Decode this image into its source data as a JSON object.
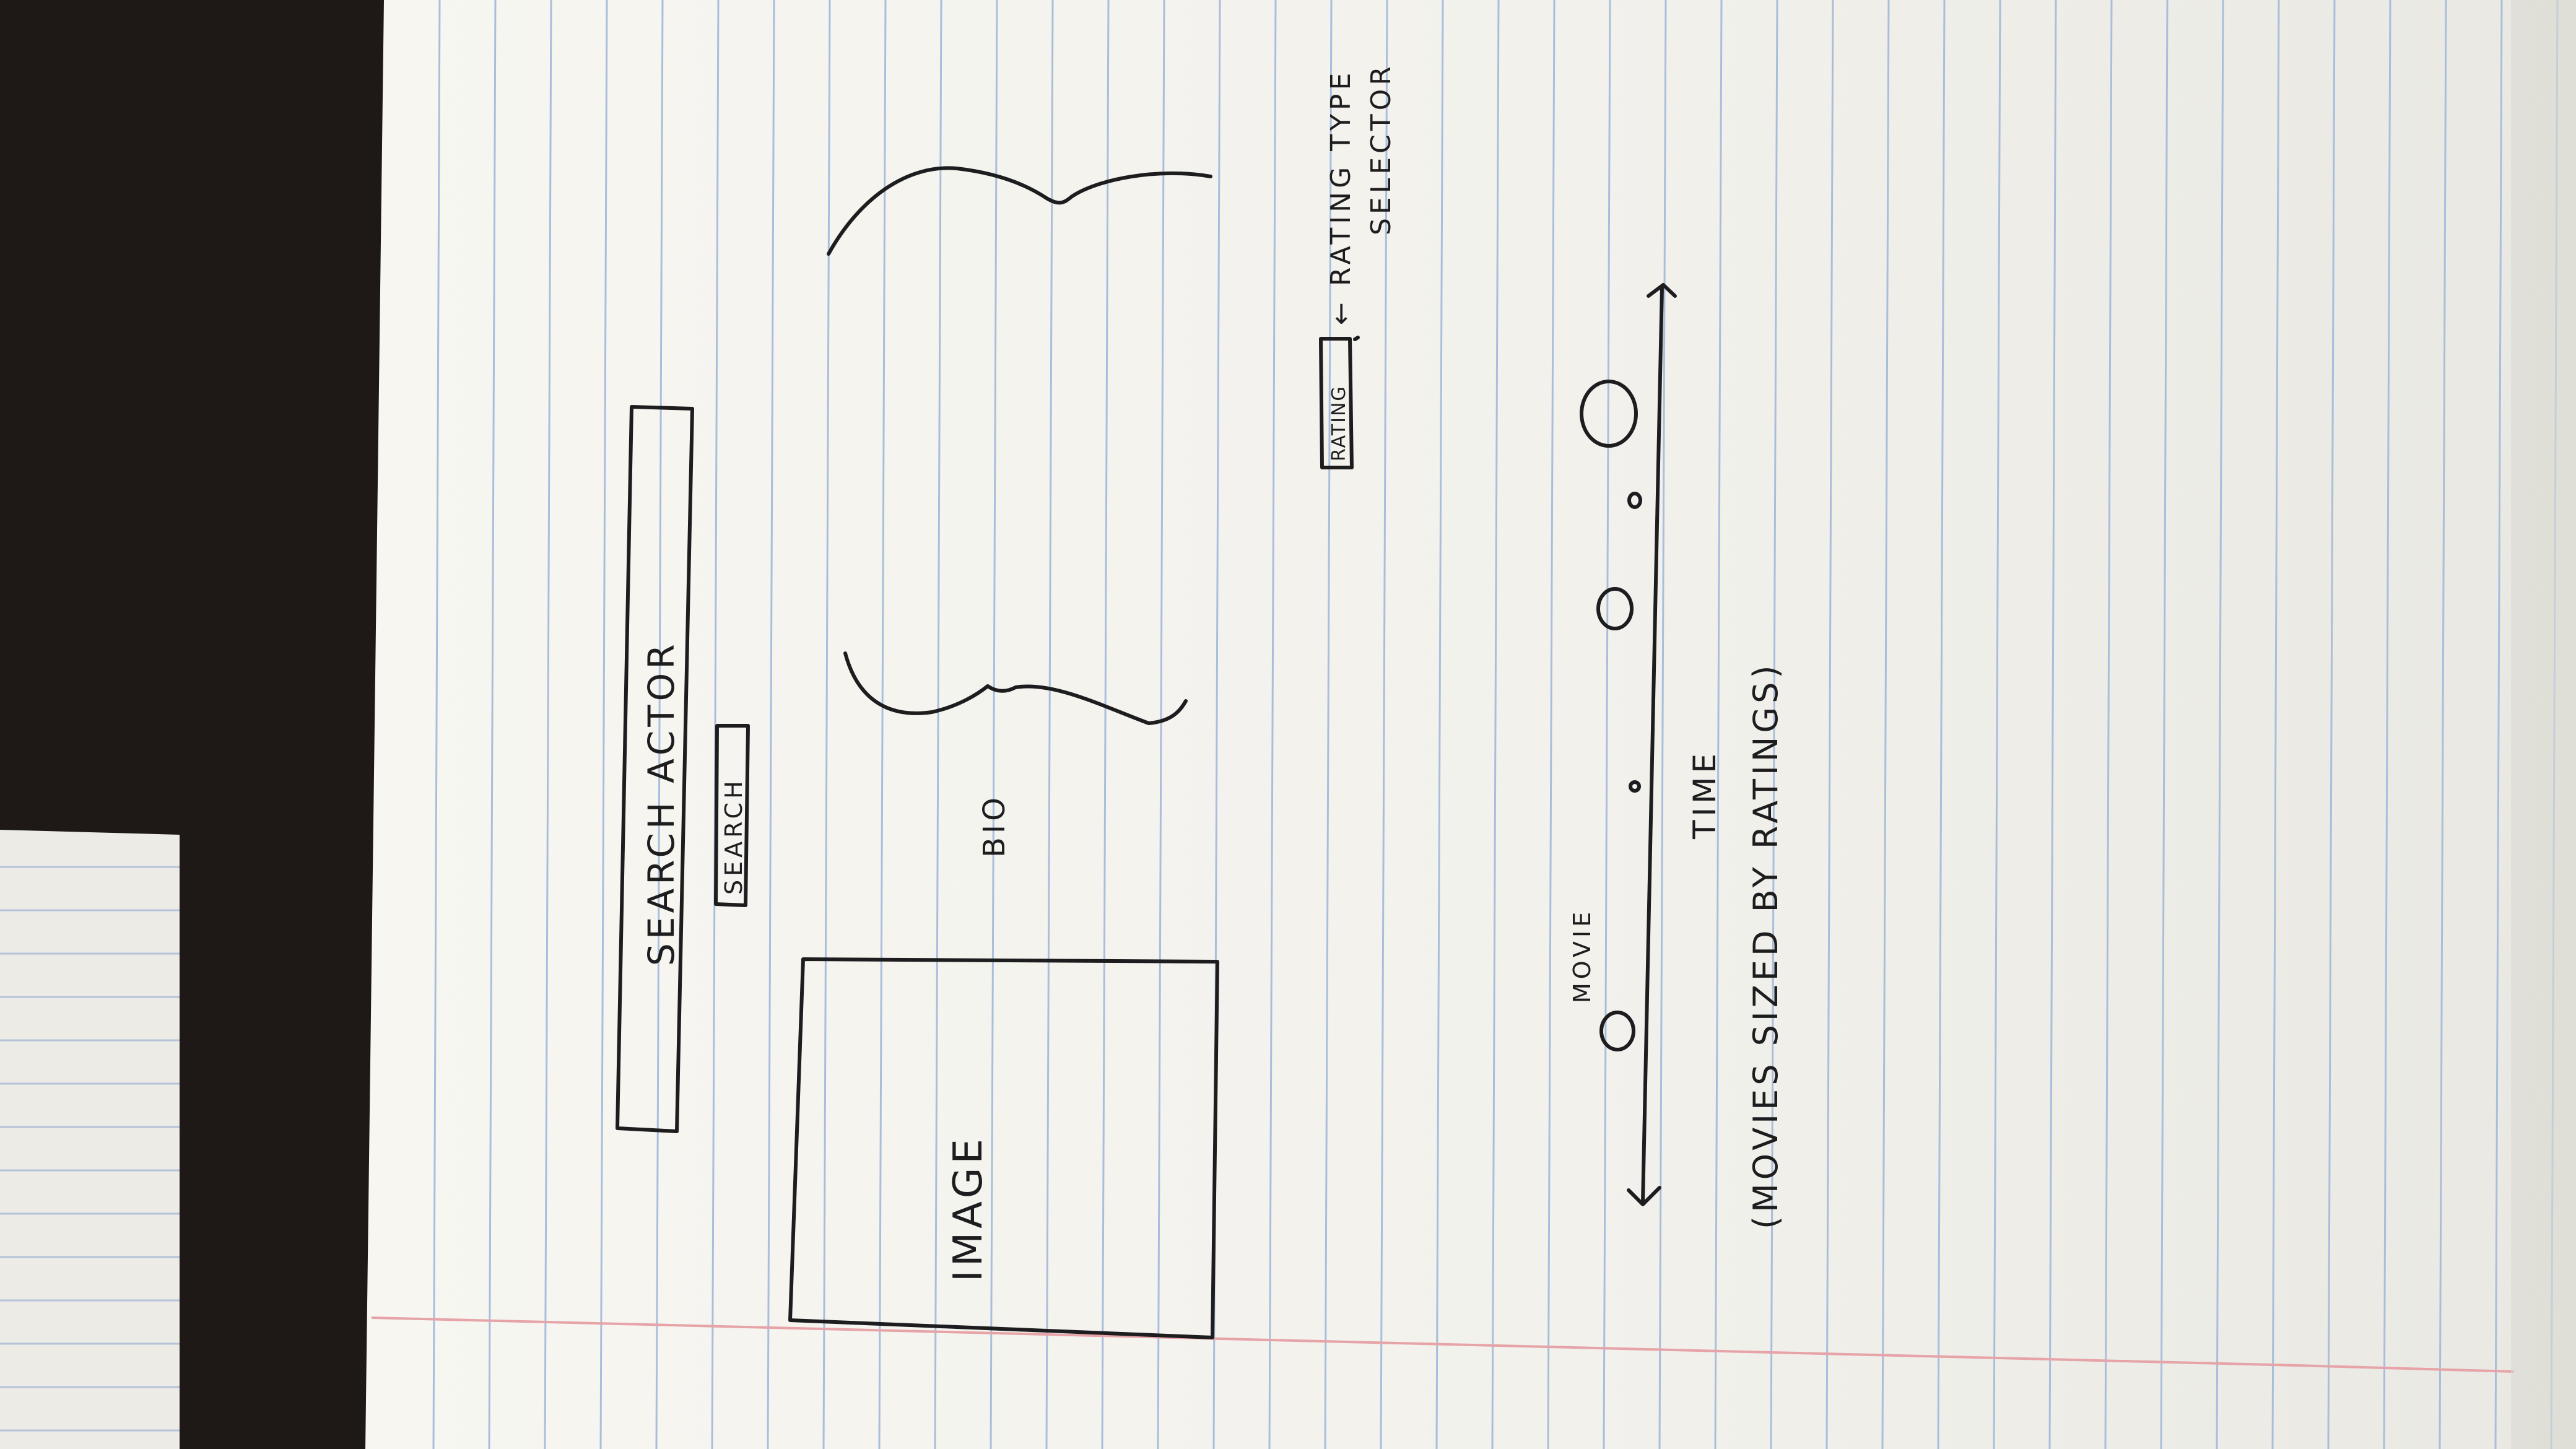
{
  "sketch": {
    "search_box_label": "SEARCH ACTOR",
    "search_button_label": "SEARCH",
    "image_label": "IMAGE",
    "bio_label": "BIO",
    "rating_button_label": "RATING",
    "rating_note_line1": "← RATING TYPE",
    "rating_note_line2": "SELECTOR",
    "movie_label": "MOVIE",
    "axis_label": "TIME",
    "caption": "(MOVIES SIZED BY RATINGS)"
  },
  "colors": {
    "paper": "#f4f3ee",
    "rule_line": "#a9bedb",
    "margin_line": "#e6a3a8",
    "ink": "#1d1d1f",
    "background": "#1e1916"
  }
}
